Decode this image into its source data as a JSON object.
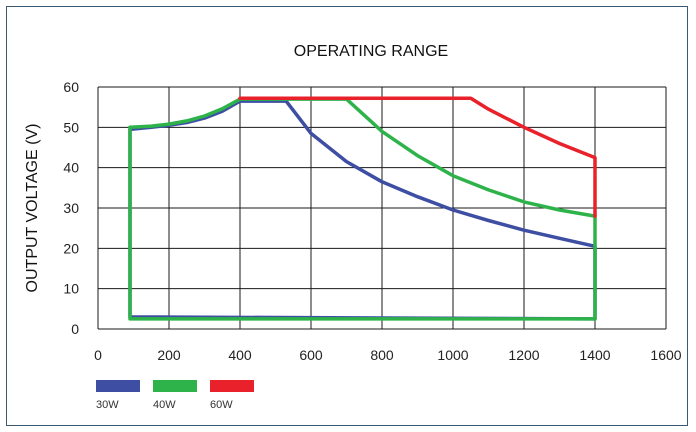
{
  "chart_data": {
    "type": "line",
    "title": "OPERATING RANGE",
    "xlabel": "",
    "ylabel": "OUTPUT VOLTAGE (V)",
    "xlim": [
      0,
      1600
    ],
    "ylim": [
      0,
      60
    ],
    "x_ticks": [
      "0",
      "200",
      "400",
      "600",
      "800",
      "1000",
      "1200",
      "1400",
      "1600"
    ],
    "y_ticks": [
      "0",
      "10",
      "20",
      "30",
      "40",
      "50",
      "60"
    ],
    "grid": true,
    "legend_position": "bottom-left",
    "series": [
      {
        "name": "30W",
        "color": "#3d4ea3",
        "x": [
          1400,
          1400,
          1300,
          1200,
          1100,
          1000,
          900,
          800,
          700,
          600,
          530,
          400,
          350,
          300,
          250,
          200,
          150,
          90,
          90,
          1400
        ],
        "y": [
          2.5,
          20.5,
          22.5,
          24.5,
          26.9,
          29.5,
          32.8,
          36.5,
          41.5,
          48.5,
          56.5,
          56.5,
          54.0,
          52.3,
          51.2,
          50.5,
          50.0,
          49.5,
          3.0,
          2.5
        ]
      },
      {
        "name": "40W",
        "color": "#2eb34a",
        "x": [
          90,
          90,
          150,
          200,
          250,
          300,
          350,
          400,
          700,
          800,
          900,
          1000,
          1100,
          1200,
          1300,
          1400,
          1400,
          90
        ],
        "y": [
          2.5,
          50.0,
          50.3,
          50.8,
          51.6,
          52.8,
          54.6,
          57.0,
          57.0,
          49.0,
          43.0,
          38.0,
          34.5,
          31.5,
          29.5,
          28.0,
          2.5,
          2.5
        ]
      },
      {
        "name": "60W",
        "color": "#e8212b",
        "x": [
          400,
          1050,
          1100,
          1200,
          1300,
          1400,
          1400
        ],
        "y": [
          57.2,
          57.2,
          54.5,
          50.0,
          46.0,
          42.5,
          28.0
        ]
      }
    ]
  }
}
